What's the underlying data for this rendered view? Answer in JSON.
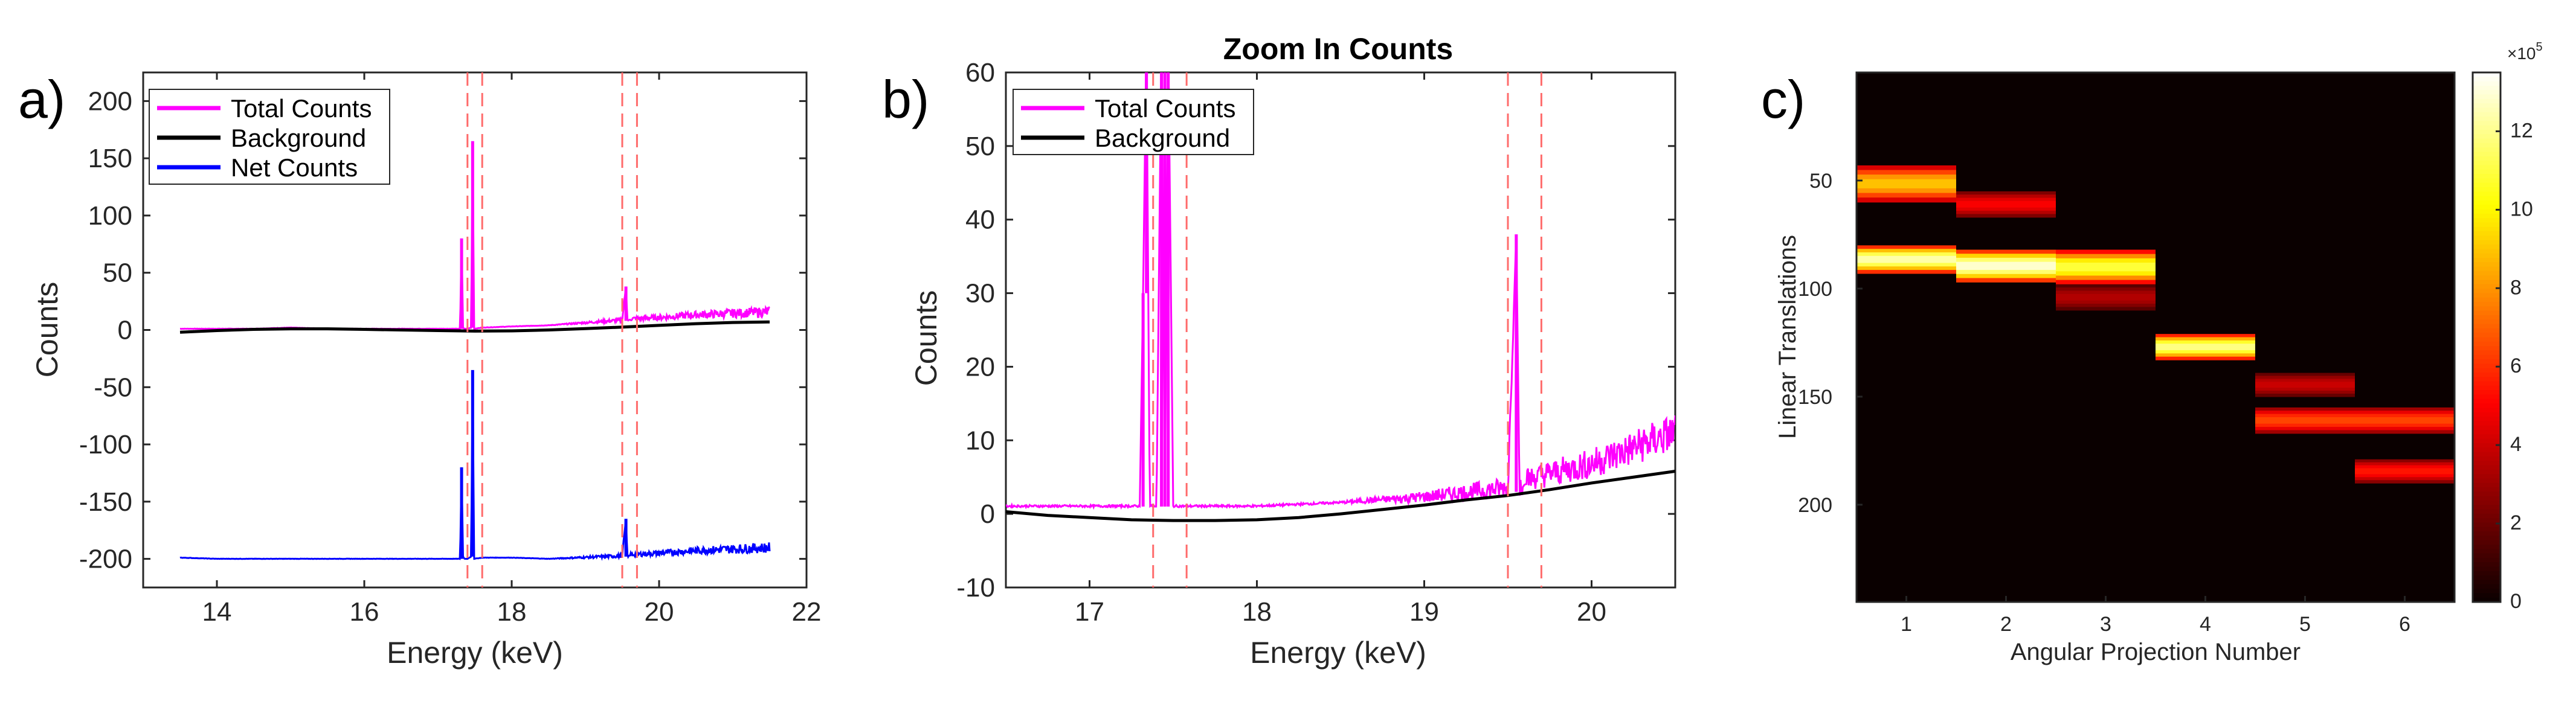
{
  "colors": {
    "total": "#ff00ff",
    "background": "#000000",
    "net": "#0000ff",
    "roi": "#ff6b6b",
    "heat_bg": "#0a0000"
  },
  "chart_data": [
    {
      "panel_label": "a)",
      "type": "line",
      "title": "",
      "xlabel": "Energy (keV)",
      "ylabel": "Counts",
      "xlim": [
        13,
        22
      ],
      "ylim": [
        -225,
        225
      ],
      "xticks": [
        14,
        16,
        18,
        20,
        22
      ],
      "xtick_labels": [
        "14",
        "16",
        "18",
        "20",
        "22"
      ],
      "yticks": [
        200,
        150,
        100,
        50,
        0,
        -50,
        -100,
        -150,
        -200
      ],
      "ytick_labels": [
        "200",
        "150",
        "100",
        "50",
        "0",
        "-50",
        "-100",
        "-150",
        "-200"
      ],
      "roi_lines": [
        17.4,
        17.6,
        19.5,
        19.7
      ],
      "legend_labels": [
        "Total Counts",
        "Background",
        "Net Counts"
      ],
      "series": [
        {
          "name": "Total Counts",
          "x": [
            13.5,
            14.0,
            14.5,
            15.0,
            15.5,
            16.0,
            16.5,
            17.0,
            17.3,
            17.32,
            17.34,
            17.36,
            17.4,
            17.45,
            17.47,
            17.49,
            17.6,
            18.0,
            18.5,
            19.0,
            19.5,
            19.55,
            19.57,
            19.6,
            20.0,
            20.5,
            21.0,
            21.5
          ],
          "y": [
            1,
            1,
            1,
            2,
            1,
            1,
            1,
            1,
            1,
            80,
            2,
            1,
            1,
            2,
            165,
            1,
            2,
            3,
            4,
            6,
            8,
            38,
            8,
            9,
            10,
            12,
            13,
            14
          ]
        },
        {
          "name": "Background",
          "x": [
            13.5,
            14.0,
            14.5,
            15.0,
            15.5,
            16.0,
            16.5,
            17.0,
            17.5,
            18.0,
            18.5,
            19.0,
            19.5,
            20.0,
            20.5,
            21.0,
            21.5
          ],
          "y": [
            -2,
            -0.5,
            0.5,
            1,
            1,
            0.5,
            0,
            -0.5,
            -1,
            -0.8,
            0,
            1.2,
            2.5,
            4,
            5.5,
            6.5,
            7
          ]
        },
        {
          "name": "Net Counts",
          "x": [
            13.5,
            14.0,
            15.0,
            16.0,
            17.0,
            17.3,
            17.32,
            17.34,
            17.36,
            17.4,
            17.45,
            17.47,
            17.49,
            17.6,
            18.0,
            18.5,
            19.0,
            19.5,
            19.55,
            19.57,
            19.6,
            20.0,
            20.5,
            21.0,
            21.5
          ],
          "y": [
            -199,
            -200,
            -200,
            -200,
            -200,
            -200,
            -120,
            -198,
            -200,
            -200,
            -198,
            -35,
            -200,
            -199,
            -199,
            -200,
            -199,
            -198,
            -165,
            -198,
            -197,
            -196,
            -194,
            -193,
            -192
          ]
        }
      ]
    },
    {
      "panel_label": "b)",
      "type": "line",
      "title": "Zoom In Counts",
      "xlabel": "Energy (keV)",
      "ylabel": "Counts",
      "xlim": [
        16.5,
        20.5
      ],
      "ylim": [
        -10,
        60
      ],
      "xticks": [
        17,
        18,
        19,
        20
      ],
      "xtick_labels": [
        "17",
        "18",
        "19",
        "20"
      ],
      "yticks": [
        60,
        50,
        40,
        30,
        20,
        10,
        0,
        -10
      ],
      "ytick_labels": [
        "60",
        "50",
        "40",
        "30",
        "20",
        "10",
        "0",
        "-10"
      ],
      "roi_lines": [
        17.38,
        17.58,
        19.5,
        19.7
      ],
      "legend_labels": [
        "Total Counts",
        "Background"
      ],
      "series": [
        {
          "name": "Total Counts",
          "x": [
            16.5,
            17.0,
            17.3,
            17.32,
            17.34,
            17.36,
            17.4,
            17.43,
            17.45,
            17.47,
            17.5,
            18.0,
            18.5,
            19.0,
            19.5,
            19.55,
            19.57,
            19.6,
            20.0,
            20.5
          ],
          "y": [
            1,
            1,
            1,
            30,
            65,
            1,
            1,
            65,
            1,
            65,
            1,
            1,
            1.5,
            2,
            3,
            38,
            3,
            4,
            6,
            10
          ]
        },
        {
          "name": "Background",
          "x": [
            16.5,
            16.75,
            17.0,
            17.25,
            17.5,
            17.75,
            18.0,
            18.25,
            18.5,
            18.75,
            19.0,
            19.25,
            19.5,
            19.75,
            20.0,
            20.25,
            20.5
          ],
          "y": [
            0.3,
            -0.2,
            -0.5,
            -0.8,
            -0.9,
            -0.9,
            -0.8,
            -0.5,
            0,
            0.6,
            1.2,
            1.9,
            2.5,
            3.3,
            4.2,
            5,
            5.8
          ]
        }
      ]
    },
    {
      "panel_label": "c)",
      "type": "heatmap",
      "title": "",
      "xlabel": "Angular Projection Number",
      "ylabel": "Linear Translations",
      "xticks": [
        1,
        2,
        3,
        4,
        5,
        6
      ],
      "xtick_labels": [
        "1",
        "2",
        "3",
        "4",
        "5",
        "6"
      ],
      "yrange": [
        0,
        245
      ],
      "yticks": [
        50,
        100,
        150,
        200
      ],
      "ytick_labels": [
        "50",
        "100",
        "150",
        "200"
      ],
      "colorbar_ticks": [
        0,
        2,
        4,
        6,
        8,
        10,
        12
      ],
      "colorbar_tick_labels": [
        "0",
        "2",
        "4",
        "6",
        "8",
        "10",
        "12"
      ],
      "colorbar_max": 13.5,
      "colorbar_exponent": "×10",
      "colorbar_exponent_power": "5",
      "bands": [
        {
          "projection": 1,
          "y_start": 43,
          "y_end": 60,
          "value": 9
        },
        {
          "projection": 1,
          "y_start": 80,
          "y_end": 93,
          "value": 12.5
        },
        {
          "projection": 2,
          "y_start": 55,
          "y_end": 67,
          "value": 5
        },
        {
          "projection": 2,
          "y_start": 82,
          "y_end": 97,
          "value": 13
        },
        {
          "projection": 3,
          "y_start": 82,
          "y_end": 98,
          "value": 11
        },
        {
          "projection": 3,
          "y_start": 98,
          "y_end": 110,
          "value": 3.5
        },
        {
          "projection": 4,
          "y_start": 121,
          "y_end": 133,
          "value": 12
        },
        {
          "projection": 5,
          "y_start": 139,
          "y_end": 150,
          "value": 4
        },
        {
          "projection": 5,
          "y_start": 155,
          "y_end": 167,
          "value": 6.5
        },
        {
          "projection": 6,
          "y_start": 155,
          "y_end": 167,
          "value": 6.5
        },
        {
          "projection": 6,
          "y_start": 179,
          "y_end": 190,
          "value": 5.5
        }
      ]
    }
  ]
}
